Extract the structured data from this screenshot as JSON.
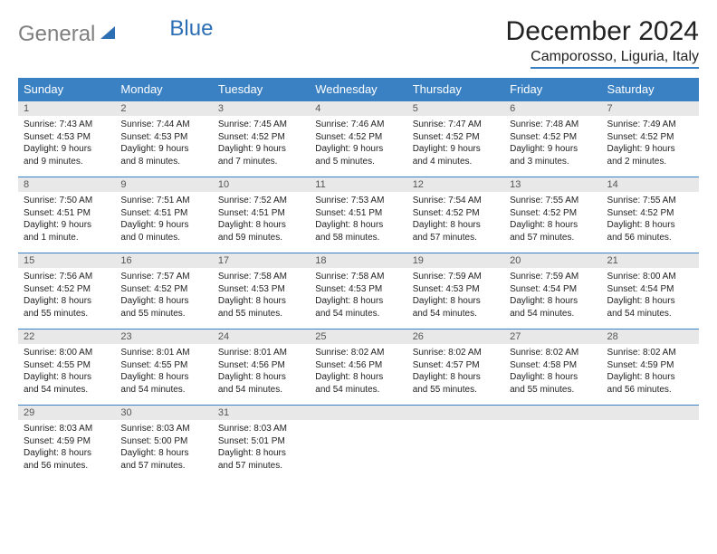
{
  "logo": {
    "gray": "General",
    "blue": "Blue"
  },
  "title": "December 2024",
  "location": "Camporosso, Liguria, Italy",
  "colors": {
    "header_bg": "#3a81c4",
    "header_text": "#ffffff",
    "daynum_bg": "#e8e8e8",
    "border": "#3a81c4",
    "logo_gray": "#7f7f7f",
    "logo_blue": "#2d6fb5"
  },
  "weekdays": [
    "Sunday",
    "Monday",
    "Tuesday",
    "Wednesday",
    "Thursday",
    "Friday",
    "Saturday"
  ],
  "weeks": [
    [
      {
        "day": "1",
        "sunrise": "Sunrise: 7:43 AM",
        "sunset": "Sunset: 4:53 PM",
        "dl1": "Daylight: 9 hours",
        "dl2": "and 9 minutes."
      },
      {
        "day": "2",
        "sunrise": "Sunrise: 7:44 AM",
        "sunset": "Sunset: 4:53 PM",
        "dl1": "Daylight: 9 hours",
        "dl2": "and 8 minutes."
      },
      {
        "day": "3",
        "sunrise": "Sunrise: 7:45 AM",
        "sunset": "Sunset: 4:52 PM",
        "dl1": "Daylight: 9 hours",
        "dl2": "and 7 minutes."
      },
      {
        "day": "4",
        "sunrise": "Sunrise: 7:46 AM",
        "sunset": "Sunset: 4:52 PM",
        "dl1": "Daylight: 9 hours",
        "dl2": "and 5 minutes."
      },
      {
        "day": "5",
        "sunrise": "Sunrise: 7:47 AM",
        "sunset": "Sunset: 4:52 PM",
        "dl1": "Daylight: 9 hours",
        "dl2": "and 4 minutes."
      },
      {
        "day": "6",
        "sunrise": "Sunrise: 7:48 AM",
        "sunset": "Sunset: 4:52 PM",
        "dl1": "Daylight: 9 hours",
        "dl2": "and 3 minutes."
      },
      {
        "day": "7",
        "sunrise": "Sunrise: 7:49 AM",
        "sunset": "Sunset: 4:52 PM",
        "dl1": "Daylight: 9 hours",
        "dl2": "and 2 minutes."
      }
    ],
    [
      {
        "day": "8",
        "sunrise": "Sunrise: 7:50 AM",
        "sunset": "Sunset: 4:51 PM",
        "dl1": "Daylight: 9 hours",
        "dl2": "and 1 minute."
      },
      {
        "day": "9",
        "sunrise": "Sunrise: 7:51 AM",
        "sunset": "Sunset: 4:51 PM",
        "dl1": "Daylight: 9 hours",
        "dl2": "and 0 minutes."
      },
      {
        "day": "10",
        "sunrise": "Sunrise: 7:52 AM",
        "sunset": "Sunset: 4:51 PM",
        "dl1": "Daylight: 8 hours",
        "dl2": "and 59 minutes."
      },
      {
        "day": "11",
        "sunrise": "Sunrise: 7:53 AM",
        "sunset": "Sunset: 4:51 PM",
        "dl1": "Daylight: 8 hours",
        "dl2": "and 58 minutes."
      },
      {
        "day": "12",
        "sunrise": "Sunrise: 7:54 AM",
        "sunset": "Sunset: 4:52 PM",
        "dl1": "Daylight: 8 hours",
        "dl2": "and 57 minutes."
      },
      {
        "day": "13",
        "sunrise": "Sunrise: 7:55 AM",
        "sunset": "Sunset: 4:52 PM",
        "dl1": "Daylight: 8 hours",
        "dl2": "and 57 minutes."
      },
      {
        "day": "14",
        "sunrise": "Sunrise: 7:55 AM",
        "sunset": "Sunset: 4:52 PM",
        "dl1": "Daylight: 8 hours",
        "dl2": "and 56 minutes."
      }
    ],
    [
      {
        "day": "15",
        "sunrise": "Sunrise: 7:56 AM",
        "sunset": "Sunset: 4:52 PM",
        "dl1": "Daylight: 8 hours",
        "dl2": "and 55 minutes."
      },
      {
        "day": "16",
        "sunrise": "Sunrise: 7:57 AM",
        "sunset": "Sunset: 4:52 PM",
        "dl1": "Daylight: 8 hours",
        "dl2": "and 55 minutes."
      },
      {
        "day": "17",
        "sunrise": "Sunrise: 7:58 AM",
        "sunset": "Sunset: 4:53 PM",
        "dl1": "Daylight: 8 hours",
        "dl2": "and 55 minutes."
      },
      {
        "day": "18",
        "sunrise": "Sunrise: 7:58 AM",
        "sunset": "Sunset: 4:53 PM",
        "dl1": "Daylight: 8 hours",
        "dl2": "and 54 minutes."
      },
      {
        "day": "19",
        "sunrise": "Sunrise: 7:59 AM",
        "sunset": "Sunset: 4:53 PM",
        "dl1": "Daylight: 8 hours",
        "dl2": "and 54 minutes."
      },
      {
        "day": "20",
        "sunrise": "Sunrise: 7:59 AM",
        "sunset": "Sunset: 4:54 PM",
        "dl1": "Daylight: 8 hours",
        "dl2": "and 54 minutes."
      },
      {
        "day": "21",
        "sunrise": "Sunrise: 8:00 AM",
        "sunset": "Sunset: 4:54 PM",
        "dl1": "Daylight: 8 hours",
        "dl2": "and 54 minutes."
      }
    ],
    [
      {
        "day": "22",
        "sunrise": "Sunrise: 8:00 AM",
        "sunset": "Sunset: 4:55 PM",
        "dl1": "Daylight: 8 hours",
        "dl2": "and 54 minutes."
      },
      {
        "day": "23",
        "sunrise": "Sunrise: 8:01 AM",
        "sunset": "Sunset: 4:55 PM",
        "dl1": "Daylight: 8 hours",
        "dl2": "and 54 minutes."
      },
      {
        "day": "24",
        "sunrise": "Sunrise: 8:01 AM",
        "sunset": "Sunset: 4:56 PM",
        "dl1": "Daylight: 8 hours",
        "dl2": "and 54 minutes."
      },
      {
        "day": "25",
        "sunrise": "Sunrise: 8:02 AM",
        "sunset": "Sunset: 4:56 PM",
        "dl1": "Daylight: 8 hours",
        "dl2": "and 54 minutes."
      },
      {
        "day": "26",
        "sunrise": "Sunrise: 8:02 AM",
        "sunset": "Sunset: 4:57 PM",
        "dl1": "Daylight: 8 hours",
        "dl2": "and 55 minutes."
      },
      {
        "day": "27",
        "sunrise": "Sunrise: 8:02 AM",
        "sunset": "Sunset: 4:58 PM",
        "dl1": "Daylight: 8 hours",
        "dl2": "and 55 minutes."
      },
      {
        "day": "28",
        "sunrise": "Sunrise: 8:02 AM",
        "sunset": "Sunset: 4:59 PM",
        "dl1": "Daylight: 8 hours",
        "dl2": "and 56 minutes."
      }
    ],
    [
      {
        "day": "29",
        "sunrise": "Sunrise: 8:03 AM",
        "sunset": "Sunset: 4:59 PM",
        "dl1": "Daylight: 8 hours",
        "dl2": "and 56 minutes."
      },
      {
        "day": "30",
        "sunrise": "Sunrise: 8:03 AM",
        "sunset": "Sunset: 5:00 PM",
        "dl1": "Daylight: 8 hours",
        "dl2": "and 57 minutes."
      },
      {
        "day": "31",
        "sunrise": "Sunrise: 8:03 AM",
        "sunset": "Sunset: 5:01 PM",
        "dl1": "Daylight: 8 hours",
        "dl2": "and 57 minutes."
      },
      {
        "empty": true
      },
      {
        "empty": true
      },
      {
        "empty": true
      },
      {
        "empty": true
      }
    ]
  ]
}
